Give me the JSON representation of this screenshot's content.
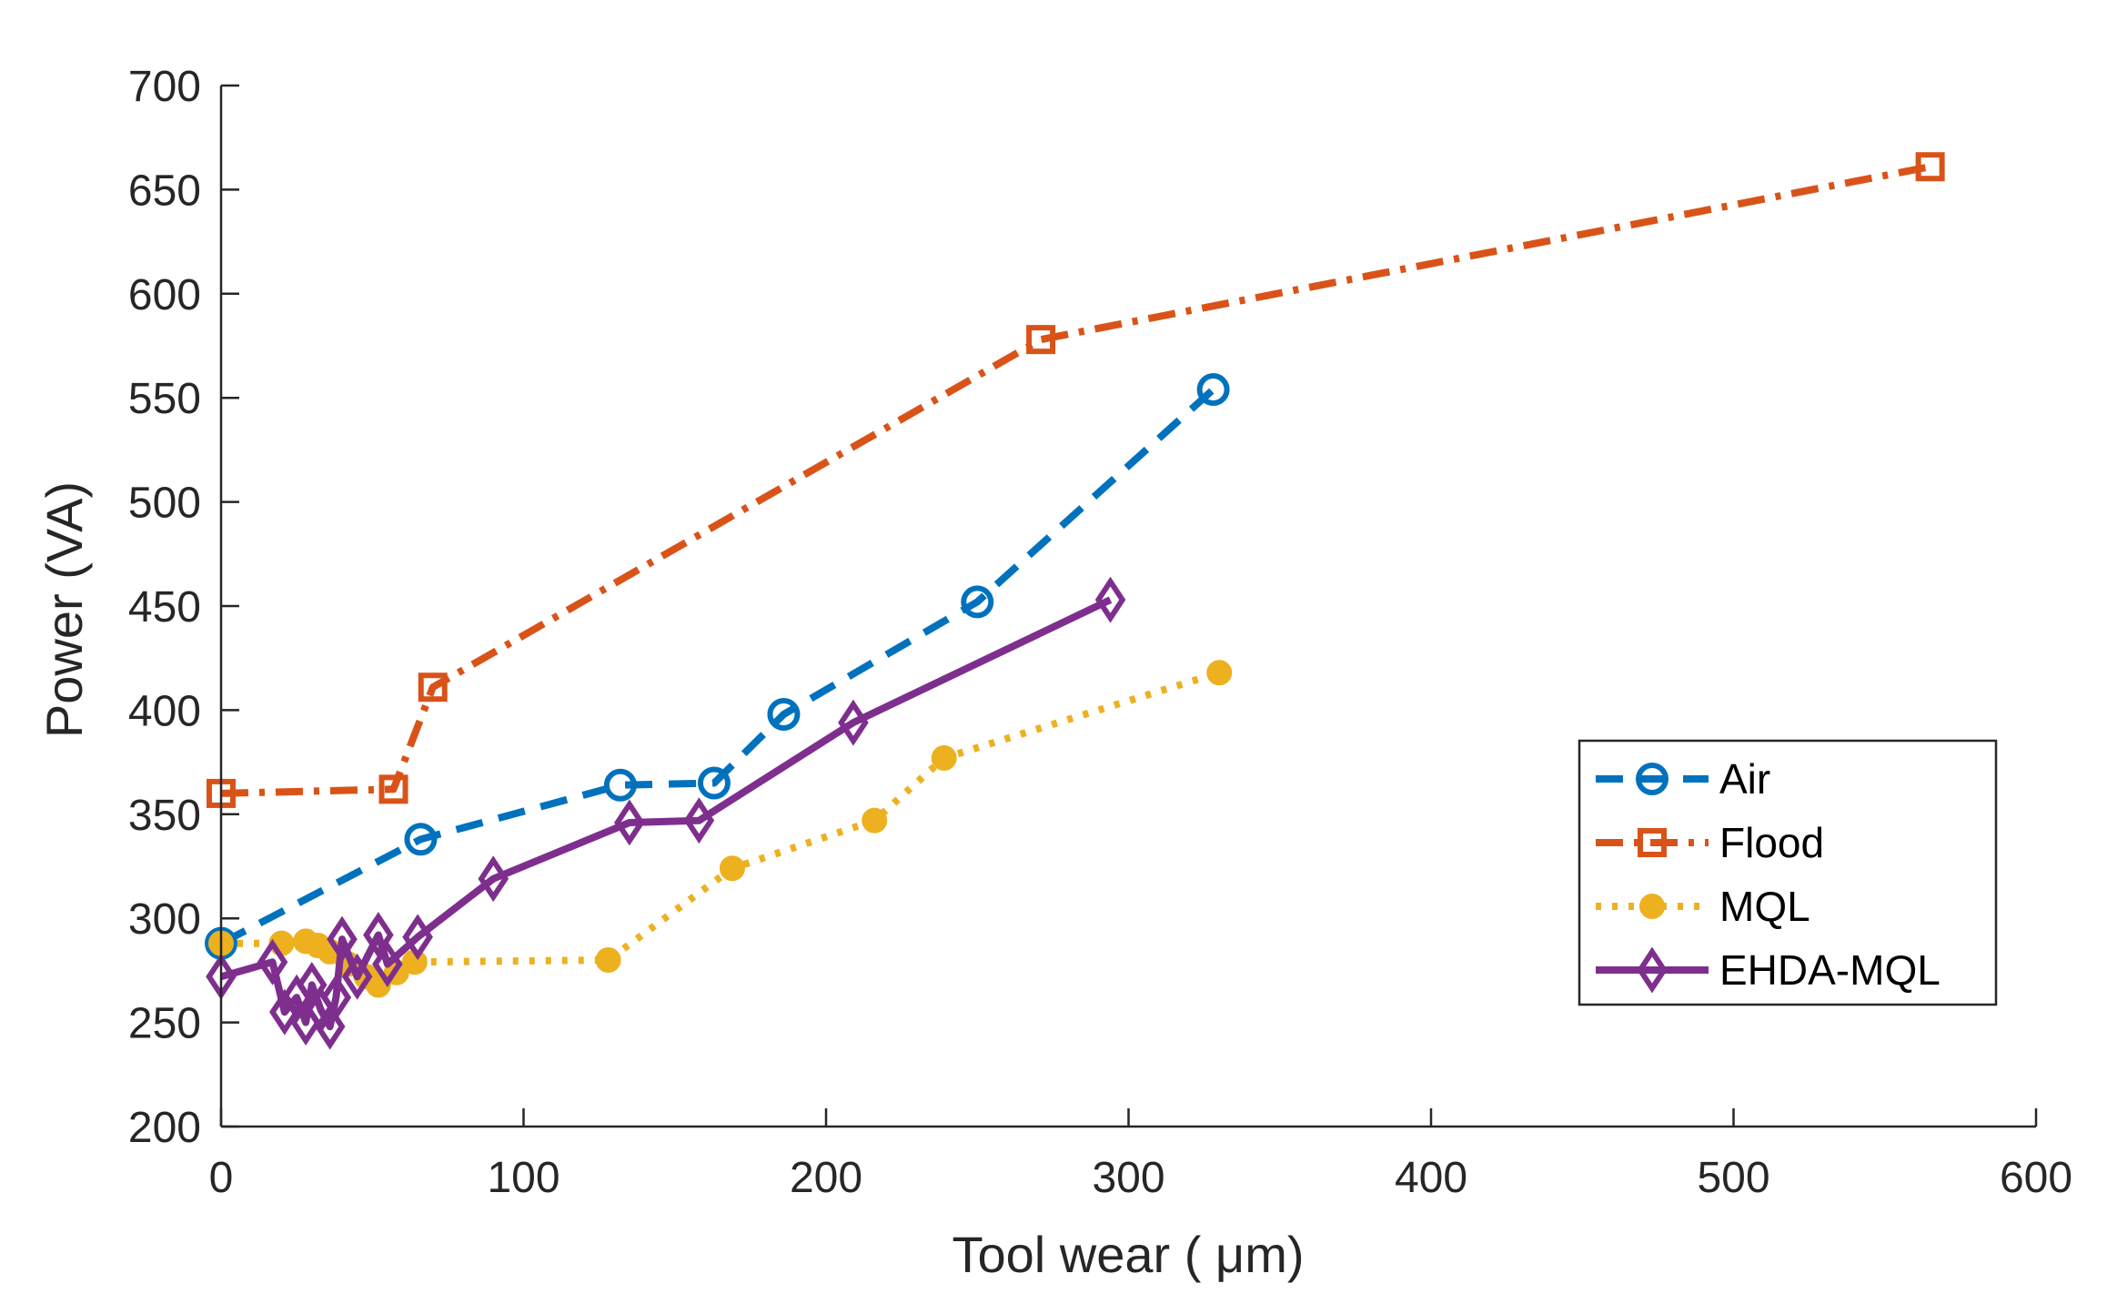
{
  "chart_data": {
    "type": "line",
    "title": "",
    "xlabel": "Tool wear ( μm)",
    "ylabel": "Power (VA)",
    "xlim": [
      0,
      600
    ],
    "ylim": [
      200,
      700
    ],
    "xticks": [
      0,
      100,
      200,
      300,
      400,
      500,
      600
    ],
    "yticks": [
      200,
      250,
      300,
      350,
      400,
      450,
      500,
      550,
      600,
      650,
      700
    ],
    "xtick_labels": [
      "0",
      "100",
      "200",
      "300",
      "400",
      "500",
      "600"
    ],
    "ytick_labels": [
      "200",
      "250",
      "300",
      "350",
      "400",
      "450",
      "500",
      "550",
      "600",
      "650",
      "700"
    ],
    "grid": false,
    "legend_position": "right",
    "series": [
      {
        "name": "Air",
        "color": "#0072BD",
        "line_style": "dashed",
        "marker": "circle-open",
        "x": [
          0,
          66,
          132,
          163,
          186,
          250,
          328
        ],
        "y": [
          288,
          338,
          364,
          365,
          398,
          452,
          554
        ]
      },
      {
        "name": "Flood",
        "color": "#D95319",
        "line_style": "dash-dot",
        "marker": "square-open",
        "x": [
          0,
          57,
          70,
          271,
          565
        ],
        "y": [
          360,
          362,
          411,
          578,
          661
        ]
      },
      {
        "name": "MQL",
        "color": "#EDB120",
        "line_style": "dotted",
        "marker": "circle-filled",
        "x": [
          0,
          20,
          28,
          32,
          36,
          42,
          48,
          52,
          58,
          64,
          128,
          169,
          216,
          239,
          330
        ],
        "y": [
          288,
          288,
          289,
          287,
          284,
          278,
          272,
          268,
          274,
          279,
          280,
          324,
          347,
          377,
          418
        ]
      },
      {
        "name": "EHDA-MQL",
        "color": "#7E2F8E",
        "line_style": "solid",
        "marker": "diamond-open",
        "x": [
          0,
          17,
          21,
          25,
          28,
          30,
          33,
          36,
          38,
          40,
          45,
          52,
          55,
          65,
          90,
          135,
          158,
          209,
          294
        ],
        "y": [
          272,
          279,
          255,
          262,
          250,
          268,
          256,
          248,
          262,
          290,
          272,
          292,
          278,
          291,
          319,
          346,
          347,
          394,
          453
        ]
      }
    ]
  }
}
